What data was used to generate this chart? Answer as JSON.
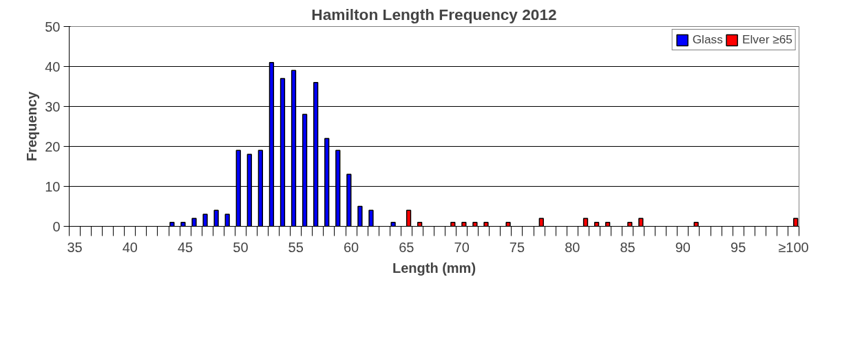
{
  "chart_data": {
    "type": "bar",
    "title": "Hamilton Length Frequency 2012",
    "xlabel": "Length (mm)",
    "ylabel": "Frequency",
    "categories": [
      "35",
      null,
      null,
      null,
      null,
      "40",
      null,
      null,
      null,
      null,
      "45",
      null,
      null,
      null,
      null,
      "50",
      null,
      null,
      null,
      null,
      "55",
      null,
      null,
      null,
      null,
      "60",
      null,
      null,
      null,
      null,
      "65",
      null,
      null,
      null,
      null,
      "70",
      null,
      null,
      null,
      null,
      "75",
      null,
      null,
      null,
      null,
      "80",
      null,
      null,
      null,
      null,
      "85",
      null,
      null,
      null,
      null,
      "90",
      null,
      null,
      null,
      null,
      "95",
      null,
      null,
      null,
      null,
      "≥100"
    ],
    "series": [
      {
        "name": "Glass",
        "color": "#0000ff",
        "values": [
          null,
          null,
          null,
          null,
          null,
          null,
          null,
          null,
          null,
          1,
          1,
          2,
          3,
          4,
          3,
          19,
          18,
          19,
          41,
          37,
          39,
          28,
          36,
          22,
          19,
          13,
          5,
          4,
          null,
          1,
          null,
          null,
          null,
          null,
          null,
          null,
          null,
          null,
          null,
          null,
          null,
          null,
          null,
          null,
          null,
          null,
          null,
          null,
          null,
          null,
          null,
          null,
          null,
          null,
          null,
          null,
          null,
          null,
          null,
          null,
          null,
          null,
          null,
          null,
          null,
          null
        ]
      },
      {
        "name": "Elver ≥65",
        "color": "#ff0000",
        "values": [
          null,
          null,
          null,
          null,
          null,
          null,
          null,
          null,
          null,
          null,
          null,
          null,
          null,
          null,
          null,
          null,
          null,
          null,
          null,
          null,
          null,
          null,
          null,
          null,
          null,
          null,
          null,
          null,
          null,
          null,
          4,
          1,
          null,
          null,
          1,
          1,
          1,
          1,
          null,
          1,
          null,
          null,
          2,
          null,
          null,
          null,
          2,
          1,
          1,
          null,
          1,
          2,
          null,
          null,
          null,
          null,
          1,
          null,
          null,
          null,
          null,
          null,
          null,
          null,
          null,
          2
        ]
      }
    ],
    "ylim": [
      0,
      50
    ],
    "yticks": [
      0,
      10,
      20,
      30,
      40,
      50
    ],
    "grid": "y",
    "legend": "top right"
  }
}
